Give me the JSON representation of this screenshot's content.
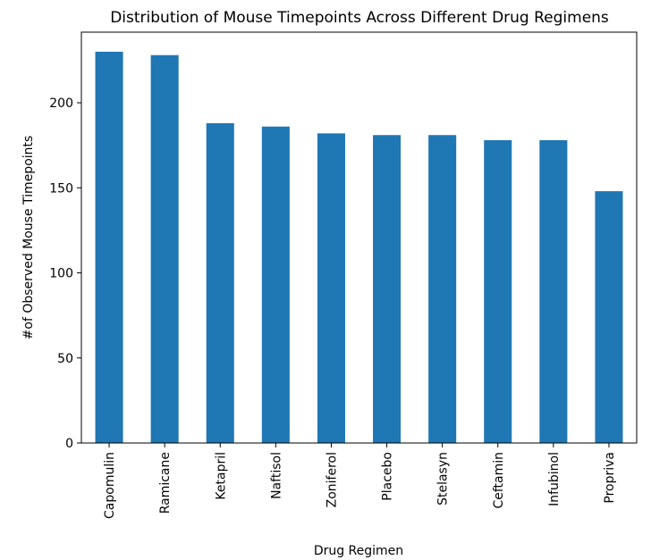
{
  "chart_data": {
    "type": "bar",
    "title": "Distribution of Mouse Timepoints Across Different Drug Regimens",
    "xlabel": "Drug Regimen",
    "ylabel": "#of Observed Mouse Timepoints",
    "categories": [
      "Capomulin",
      "Ramicane",
      "Ketapril",
      "Naftisol",
      "Zoniferol",
      "Placebo",
      "Stelasyn",
      "Ceftamin",
      "Infubinol",
      "Propriva"
    ],
    "values": [
      230,
      228,
      188,
      186,
      182,
      181,
      181,
      178,
      178,
      148
    ],
    "ylim": [
      0,
      241.5
    ],
    "yticks": [
      0,
      50,
      100,
      150,
      200
    ],
    "grid": false,
    "legend": "none",
    "bar_color": "#1f77b4"
  }
}
